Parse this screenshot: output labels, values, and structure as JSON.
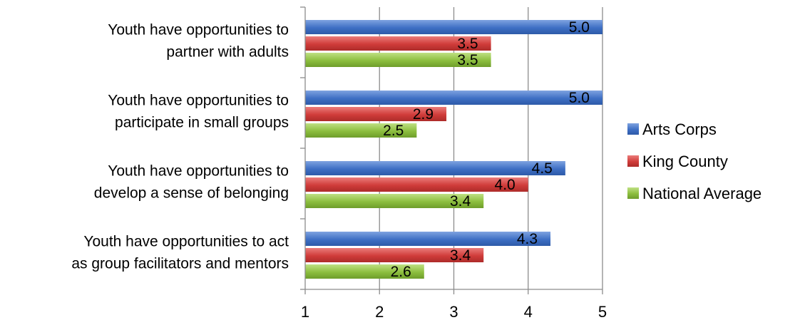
{
  "chart_data": {
    "type": "bar",
    "orientation": "horizontal",
    "title": "",
    "xlabel": "",
    "ylabel": "",
    "xlim": [
      1,
      5
    ],
    "ticks": [
      "1",
      "2",
      "3",
      "4",
      "5"
    ],
    "grid": true,
    "legend_position": "right",
    "categories": [
      [
        "Youth have opportunities to",
        "partner with adults"
      ],
      [
        "Youth have opportunities to",
        "participate in small groups"
      ],
      [
        "Youth have opportunities to",
        "develop a sense of belonging"
      ],
      [
        "Youth have opportunities to act",
        "as group facilitators and mentors"
      ]
    ],
    "series": [
      {
        "name": "Arts Corps",
        "color": "#3e6fc4",
        "values": [
          5.0,
          5.0,
          4.5,
          4.3
        ],
        "labels": [
          "5.0",
          "5.0",
          "4.5",
          "4.3"
        ]
      },
      {
        "name": "King County",
        "color": "#d03c3a",
        "values": [
          3.5,
          2.9,
          4.0,
          3.4
        ],
        "labels": [
          "3.5",
          "2.9",
          "4.0",
          "3.4"
        ]
      },
      {
        "name": "National Average",
        "color": "#8cbe3e",
        "values": [
          3.5,
          2.5,
          3.4,
          2.6
        ],
        "labels": [
          "3.5",
          "2.5",
          "3.4",
          "2.6"
        ]
      }
    ]
  }
}
